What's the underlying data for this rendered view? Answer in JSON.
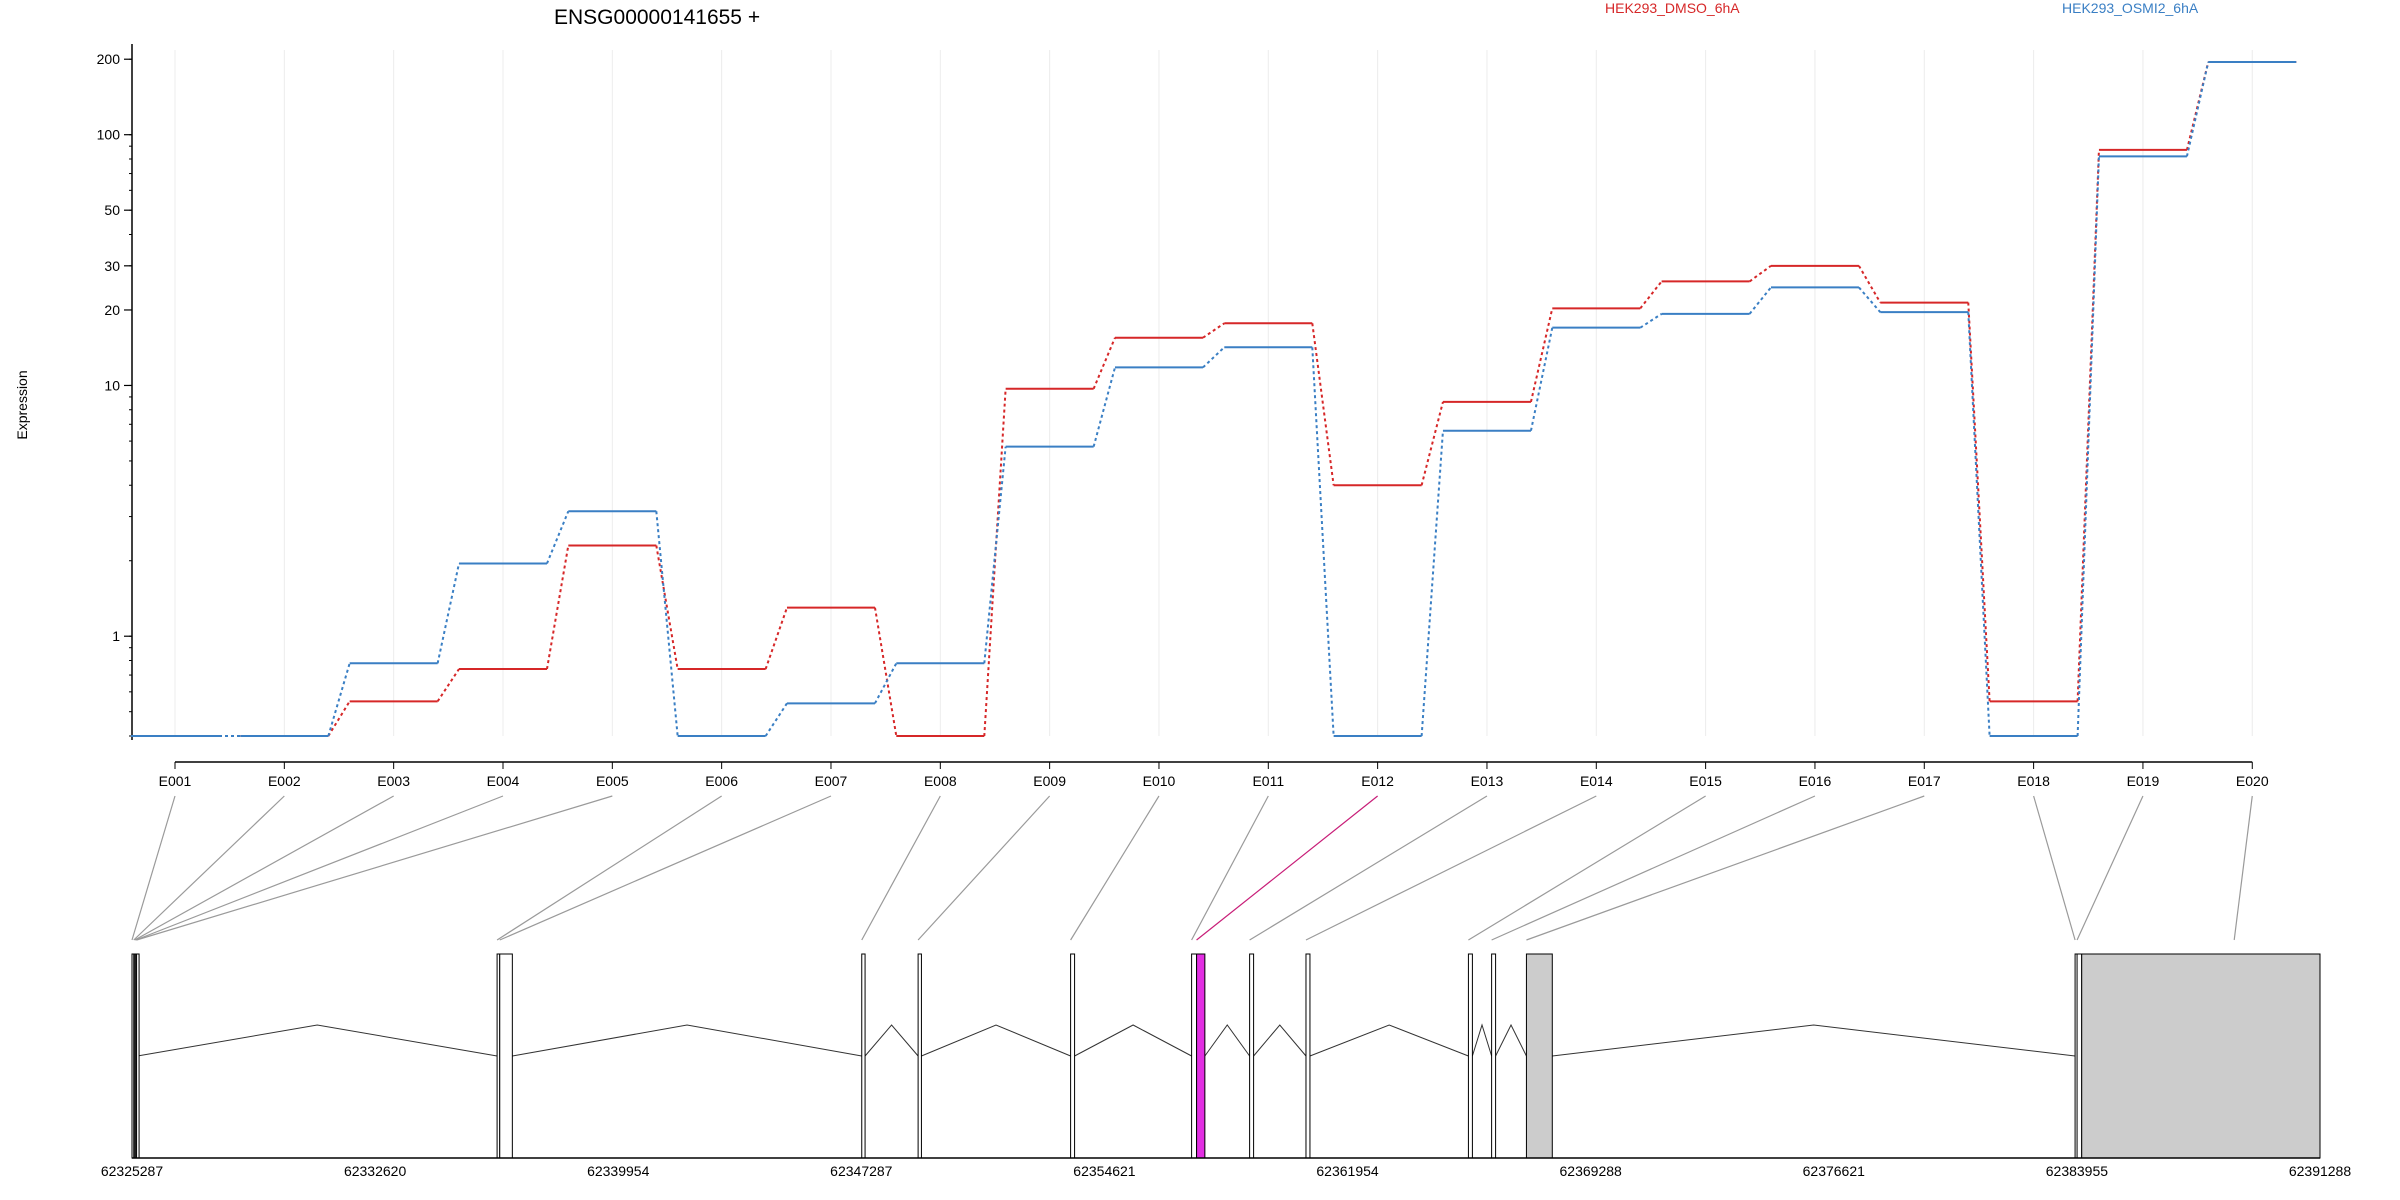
{
  "chart_data": {
    "type": "line",
    "title": "ENSG00000141655 +",
    "ylabel": "Expression",
    "xlabel": "",
    "y_scale": "log",
    "ylim": [
      0.4,
      230
    ],
    "y_ticks": [
      {
        "value": 1,
        "label": "1"
      },
      {
        "value": 10,
        "label": "10"
      },
      {
        "value": 20,
        "label": "20"
      },
      {
        "value": 30,
        "label": "30"
      },
      {
        "value": 50,
        "label": "50"
      },
      {
        "value": 100,
        "label": "100"
      },
      {
        "value": 200,
        "label": "200"
      }
    ],
    "grid": "vertical",
    "legend_position": "top",
    "categories": [
      "E001",
      "E002",
      "E003",
      "E004",
      "E005",
      "E006",
      "E007",
      "E008",
      "E009",
      "E010",
      "E011",
      "E012",
      "E013",
      "E014",
      "E015",
      "E016",
      "E017",
      "E018",
      "E019",
      "E020"
    ],
    "series": [
      {
        "name": "HEK293_DMSO_6hA",
        "color": "#d62728",
        "values": [
          0.4,
          0.4,
          0.55,
          0.74,
          2.3,
          0.74,
          1.3,
          0.4,
          9.7,
          15.5,
          17.7,
          4.0,
          8.6,
          20.3,
          26.0,
          30.0,
          21.4,
          0.55,
          87.0,
          195.0
        ]
      },
      {
        "name": "HEK293_OSMI2_6hA",
        "color": "#3a7fc4",
        "values": [
          0.4,
          0.4,
          0.78,
          1.95,
          3.15,
          0.4,
          0.54,
          0.78,
          5.7,
          11.8,
          14.2,
          0.4,
          6.6,
          17.0,
          19.3,
          24.6,
          19.6,
          0.4,
          82.0,
          195.0
        ]
      }
    ],
    "gene_model": {
      "coordinate_labels": [
        "62325287",
        "62332620",
        "62339954",
        "62347287",
        "62354621",
        "62361954",
        "62369288",
        "62376621",
        "62383955",
        "62391288"
      ],
      "coord_range": [
        62325287,
        62391288
      ],
      "highlight_color": "#e22ee2",
      "exon_fill": "#cccccc",
      "exons": [
        {
          "id": "E001",
          "start": 62325287,
          "end": 62325340
        },
        {
          "id": "E002",
          "start": 62325340,
          "end": 62325370
        },
        {
          "id": "E003",
          "start": 62325370,
          "end": 62325400
        },
        {
          "id": "E004",
          "start": 62325400,
          "end": 62325425
        },
        {
          "id": "E005",
          "start": 62325425,
          "end": 62325450
        },
        {
          "id": "E006",
          "start": 62336300,
          "end": 62336380
        },
        {
          "id": "E007",
          "start": 62336380,
          "end": 62336760
        },
        {
          "id": "E008",
          "start": 62347300,
          "end": 62347400
        },
        {
          "id": "E009",
          "start": 62349000,
          "end": 62349100
        },
        {
          "id": "E010",
          "start": 62353600,
          "end": 62353720
        },
        {
          "id": "E011",
          "start": 62357250,
          "end": 62357400
        },
        {
          "id": "E012",
          "start": 62357400,
          "end": 62357650
        },
        {
          "id": "E013",
          "start": 62359000,
          "end": 62359120
        },
        {
          "id": "E014",
          "start": 62360700,
          "end": 62360820
        },
        {
          "id": "E015",
          "start": 62365600,
          "end": 62365720
        },
        {
          "id": "E016",
          "start": 62366300,
          "end": 62366420
        },
        {
          "id": "E017",
          "start": 62367350,
          "end": 62368130
        },
        {
          "id": "E018",
          "start": 62383900,
          "end": 62383960
        },
        {
          "id": "E019",
          "start": 62383960,
          "end": 62384100
        },
        {
          "id": "E020",
          "start": 62384100,
          "end": 62391288
        }
      ],
      "highlighted_exon": "E012"
    }
  }
}
